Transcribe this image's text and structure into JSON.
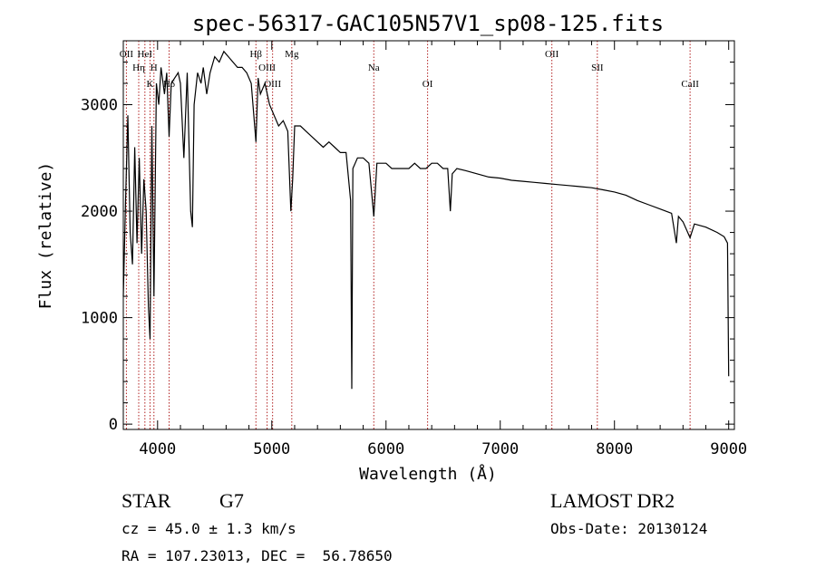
{
  "chart_data": {
    "type": "line",
    "title": "spec-56317-GAC105N57V1_sp08-125.fits",
    "xlabel": "Wavelength (Å)",
    "ylabel": "Flux (relative)",
    "xlim": [
      3700,
      9050
    ],
    "ylim": [
      -50,
      3600
    ],
    "xticks": [
      4000,
      5000,
      6000,
      7000,
      8000,
      9000
    ],
    "yticks": [
      0,
      1000,
      2000,
      3000
    ],
    "grid": false,
    "line_color": "#000000",
    "marker_color": "#b22222",
    "series": [
      {
        "x": [
          3700,
          3720,
          3740,
          3760,
          3780,
          3800,
          3820,
          3840,
          3860,
          3880,
          3900,
          3920,
          3934,
          3950,
          3968,
          3990,
          4010,
          4030,
          4060,
          4080,
          4101,
          4120,
          4150,
          4180,
          4200,
          4230,
          4260,
          4290,
          4305,
          4320,
          4350,
          4380,
          4400,
          4430,
          4460,
          4500,
          4540,
          4580,
          4620,
          4660,
          4700,
          4740,
          4780,
          4820,
          4861,
          4880,
          4900,
          4940,
          4980,
          5020,
          5060,
          5100,
          5140,
          5167,
          5183,
          5200,
          5250,
          5300,
          5350,
          5400,
          5450,
          5500,
          5550,
          5600,
          5650,
          5690,
          5700,
          5710,
          5750,
          5800,
          5850,
          5893,
          5920,
          5950,
          6000,
          6050,
          6100,
          6150,
          6200,
          6250,
          6300,
          6350,
          6400,
          6450,
          6500,
          6540,
          6563,
          6580,
          6620,
          6700,
          6800,
          6900,
          7000,
          7100,
          7200,
          7300,
          7400,
          7500,
          7600,
          7700,
          7800,
          7900,
          8000,
          8100,
          8200,
          8300,
          8400,
          8500,
          8542,
          8560,
          8600,
          8662,
          8700,
          8800,
          8900,
          8960,
          8990,
          9000
        ],
        "y": [
          1200,
          2100,
          2900,
          1800,
          1500,
          2600,
          1700,
          2500,
          1600,
          2300,
          2000,
          1100,
          800,
          2800,
          1200,
          3200,
          3000,
          3350,
          3100,
          3300,
          2700,
          3200,
          3250,
          3300,
          3200,
          2500,
          3300,
          2000,
          1850,
          3000,
          3300,
          3200,
          3350,
          3100,
          3300,
          3450,
          3400,
          3500,
          3450,
          3400,
          3350,
          3350,
          3300,
          3200,
          2650,
          3250,
          3100,
          3200,
          3000,
          2900,
          2800,
          2850,
          2750,
          2000,
          2300,
          2800,
          2800,
          2750,
          2700,
          2650,
          2600,
          2650,
          2600,
          2550,
          2550,
          2100,
          330,
          2400,
          2500,
          2500,
          2450,
          1950,
          2450,
          2450,
          2450,
          2400,
          2400,
          2400,
          2400,
          2450,
          2400,
          2400,
          2450,
          2450,
          2400,
          2400,
          2000,
          2350,
          2400,
          2380,
          2350,
          2320,
          2310,
          2290,
          2280,
          2270,
          2260,
          2250,
          2240,
          2230,
          2220,
          2200,
          2180,
          2150,
          2100,
          2060,
          2020,
          1980,
          1700,
          1950,
          1900,
          1750,
          1880,
          1850,
          1800,
          1760,
          1700,
          450
        ]
      }
    ],
    "lines": [
      {
        "label": "OII",
        "x": 3727
      },
      {
        "label": "Hη",
        "x": 3835
      },
      {
        "label": "K",
        "x": 3934
      },
      {
        "label": "HeI",
        "x": 3889
      },
      {
        "label": "H",
        "x": 3968
      },
      {
        "label": "Hδ",
        "x": 4101
      },
      {
        "label": "Hβ",
        "x": 4861
      },
      {
        "label": "OIII",
        "x": 4959
      },
      {
        "label": "OIII",
        "x": 5007
      },
      {
        "label": "Mg",
        "x": 5175
      },
      {
        "label": "Na",
        "x": 5893
      },
      {
        "label": "OI",
        "x": 6364
      },
      {
        "label": "OII",
        "x": 7452
      },
      {
        "label": "SII",
        "x": 7850
      },
      {
        "label": "CaII",
        "x": 8662
      }
    ]
  },
  "info": {
    "class_label": "STAR",
    "subclass": "G7",
    "survey": "LAMOST DR2",
    "cz_line": "cz = 45.0 ± 1.3 km/s",
    "obs_date_line": "Obs-Date: 20130124",
    "coord_line": "RA = 107.23013, DEC =  56.78650"
  }
}
